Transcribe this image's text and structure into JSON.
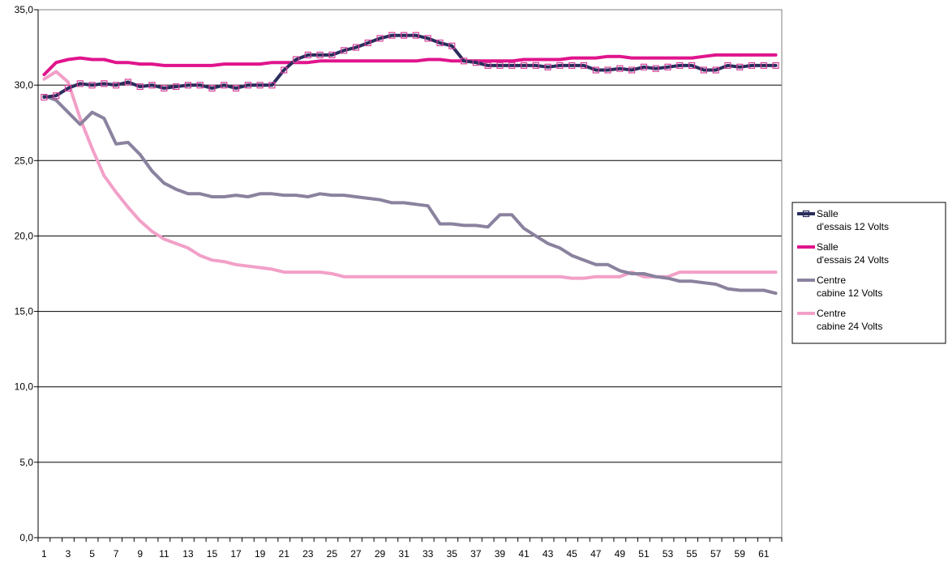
{
  "chart_data": {
    "type": "line",
    "title": "",
    "xlabel": "",
    "ylabel": "",
    "x": [
      1,
      2,
      3,
      4,
      5,
      6,
      7,
      8,
      9,
      10,
      11,
      12,
      13,
      14,
      15,
      16,
      17,
      18,
      19,
      20,
      21,
      22,
      23,
      24,
      25,
      26,
      27,
      28,
      29,
      30,
      31,
      32,
      33,
      34,
      35,
      36,
      37,
      38,
      39,
      40,
      41,
      42,
      43,
      44,
      45,
      46,
      47,
      48,
      49,
      50,
      51,
      52,
      53,
      54,
      55,
      56,
      57,
      58,
      59,
      60,
      61,
      62
    ],
    "x_tick_labels": [
      "1",
      "3",
      "5",
      "7",
      "9",
      "11",
      "13",
      "15",
      "17",
      "19",
      "21",
      "23",
      "25",
      "27",
      "29",
      "31",
      "33",
      "35",
      "37",
      "39",
      "41",
      "43",
      "45",
      "47",
      "49",
      "51",
      "53",
      "55",
      "57",
      "59",
      "61"
    ],
    "ylim": [
      0,
      35
    ],
    "y_ticks": [
      "0,0",
      "5,0",
      "10,0",
      "15,0",
      "20,0",
      "25,0",
      "30,0",
      "35,0"
    ],
    "grid": "horizontal",
    "legend_position": "right",
    "series": [
      {
        "name": "Salle\nd'essais 12 Volts",
        "color": "#2b2d5c",
        "marker": "square",
        "values": [
          29.2,
          29.3,
          29.8,
          30.1,
          30.0,
          30.1,
          30.0,
          30.2,
          29.9,
          30.0,
          29.8,
          29.9,
          30.0,
          30.0,
          29.8,
          30.0,
          29.8,
          30.0,
          30.0,
          30.0,
          31.0,
          31.7,
          32.0,
          32.0,
          32.0,
          32.3,
          32.5,
          32.8,
          33.1,
          33.3,
          33.3,
          33.3,
          33.1,
          32.8,
          32.6,
          31.6,
          31.5,
          31.3,
          31.3,
          31.3,
          31.3,
          31.3,
          31.2,
          31.3,
          31.3,
          31.3,
          31.0,
          31.0,
          31.1,
          31.0,
          31.2,
          31.1,
          31.2,
          31.3,
          31.3,
          31.0,
          31.0,
          31.3,
          31.2,
          31.3,
          31.3,
          31.3
        ]
      },
      {
        "name": "Salle\nd'essais 24 Volts",
        "color": "#e0148c",
        "marker": "none",
        "values": [
          30.7,
          31.5,
          31.7,
          31.8,
          31.7,
          31.7,
          31.5,
          31.5,
          31.4,
          31.4,
          31.3,
          31.3,
          31.3,
          31.3,
          31.3,
          31.4,
          31.4,
          31.4,
          31.4,
          31.5,
          31.5,
          31.5,
          31.5,
          31.6,
          31.6,
          31.6,
          31.6,
          31.6,
          31.6,
          31.6,
          31.6,
          31.6,
          31.7,
          31.7,
          31.6,
          31.6,
          31.6,
          31.6,
          31.6,
          31.6,
          31.7,
          31.7,
          31.7,
          31.7,
          31.8,
          31.8,
          31.8,
          31.9,
          31.9,
          31.8,
          31.8,
          31.8,
          31.8,
          31.8,
          31.8,
          31.9,
          32.0,
          32.0,
          32.0,
          32.0,
          32.0,
          32.0
        ]
      },
      {
        "name": "Centre\ncabine 12 Volts",
        "color": "#8a829e",
        "marker": "none",
        "values": [
          29.3,
          29.0,
          28.2,
          27.4,
          28.2,
          27.8,
          26.1,
          26.2,
          25.4,
          24.3,
          23.5,
          23.1,
          22.8,
          22.8,
          22.6,
          22.6,
          22.7,
          22.6,
          22.8,
          22.8,
          22.7,
          22.7,
          22.6,
          22.8,
          22.7,
          22.7,
          22.6,
          22.5,
          22.4,
          22.2,
          22.2,
          22.1,
          22.0,
          20.8,
          20.8,
          20.7,
          20.7,
          20.6,
          21.4,
          21.4,
          20.5,
          20.0,
          19.5,
          19.2,
          18.7,
          18.4,
          18.1,
          18.1,
          17.7,
          17.5,
          17.5,
          17.3,
          17.2,
          17.0,
          17.0,
          16.9,
          16.8,
          16.5,
          16.4,
          16.4,
          16.4,
          16.2
        ]
      },
      {
        "name": "Centre\ncabine 24 Volts",
        "color": "#f2a0c8",
        "marker": "none",
        "values": [
          30.4,
          30.9,
          30.2,
          27.8,
          25.8,
          24.0,
          22.9,
          21.9,
          21.0,
          20.3,
          19.8,
          19.5,
          19.2,
          18.7,
          18.4,
          18.3,
          18.1,
          18.0,
          17.9,
          17.8,
          17.6,
          17.6,
          17.6,
          17.6,
          17.5,
          17.3,
          17.3,
          17.3,
          17.3,
          17.3,
          17.3,
          17.3,
          17.3,
          17.3,
          17.3,
          17.3,
          17.3,
          17.3,
          17.3,
          17.3,
          17.3,
          17.3,
          17.3,
          17.3,
          17.2,
          17.2,
          17.3,
          17.3,
          17.3,
          17.6,
          17.3,
          17.3,
          17.3,
          17.6,
          17.6,
          17.6,
          17.6,
          17.6,
          17.6,
          17.6,
          17.6,
          17.6
        ]
      }
    ]
  }
}
